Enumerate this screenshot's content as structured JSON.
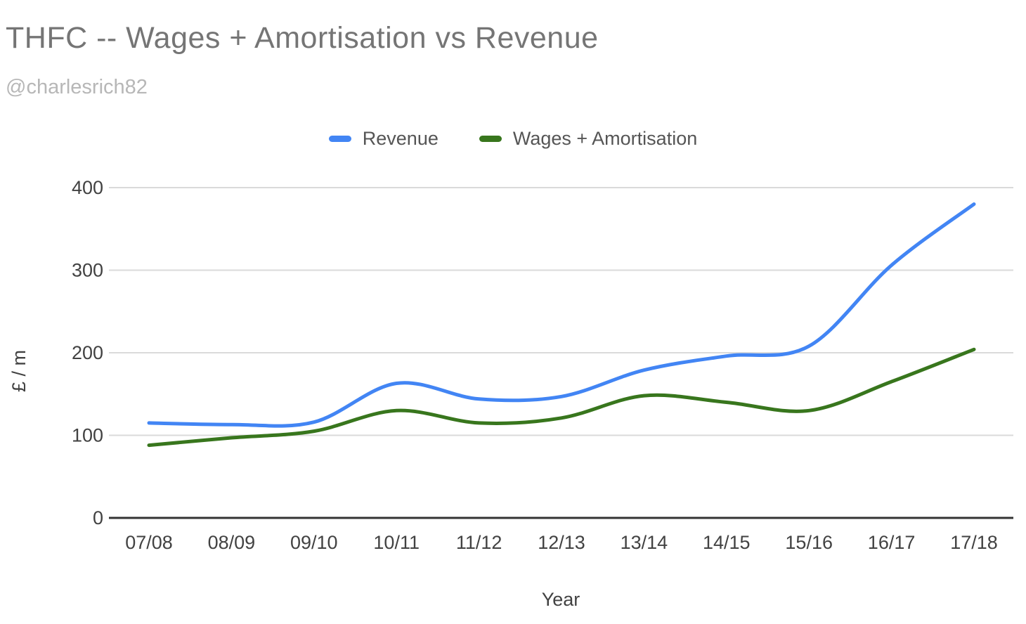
{
  "page": {
    "title": "THFC -- Wages + Amortisation vs Revenue",
    "subtitle": "@charlesrich82"
  },
  "chart_data": {
    "type": "line",
    "smooth": true,
    "title": "THFC -- Wages + Amortisation vs Revenue",
    "subtitle": "@charlesrich82",
    "xlabel": "Year",
    "ylabel": "£ / m",
    "ylim": [
      0,
      400
    ],
    "yticks": [
      0,
      100,
      200,
      300,
      400
    ],
    "grid": true,
    "legend_position": "top",
    "categories": [
      "07/08",
      "08/09",
      "09/10",
      "10/11",
      "11/12",
      "12/13",
      "13/14",
      "14/15",
      "15/16",
      "16/17",
      "17/18"
    ],
    "series": [
      {
        "name": "Revenue",
        "color": "#4285f4",
        "values": [
          115,
          113,
          116,
          163,
          144,
          147,
          179,
          196,
          208,
          306,
          380
        ]
      },
      {
        "name": "Wages + Amortisation",
        "color": "#38761d",
        "values": [
          88,
          97,
          105,
          130,
          115,
          121,
          148,
          140,
          130,
          165,
          204
        ]
      }
    ],
    "style": {
      "gridline_color": "#dadada",
      "axis_color": "#333333",
      "tick_label_color": "#424242",
      "title_color": "#757575",
      "subtitle_color": "#b7b7b7",
      "background": "#ffffff"
    }
  }
}
